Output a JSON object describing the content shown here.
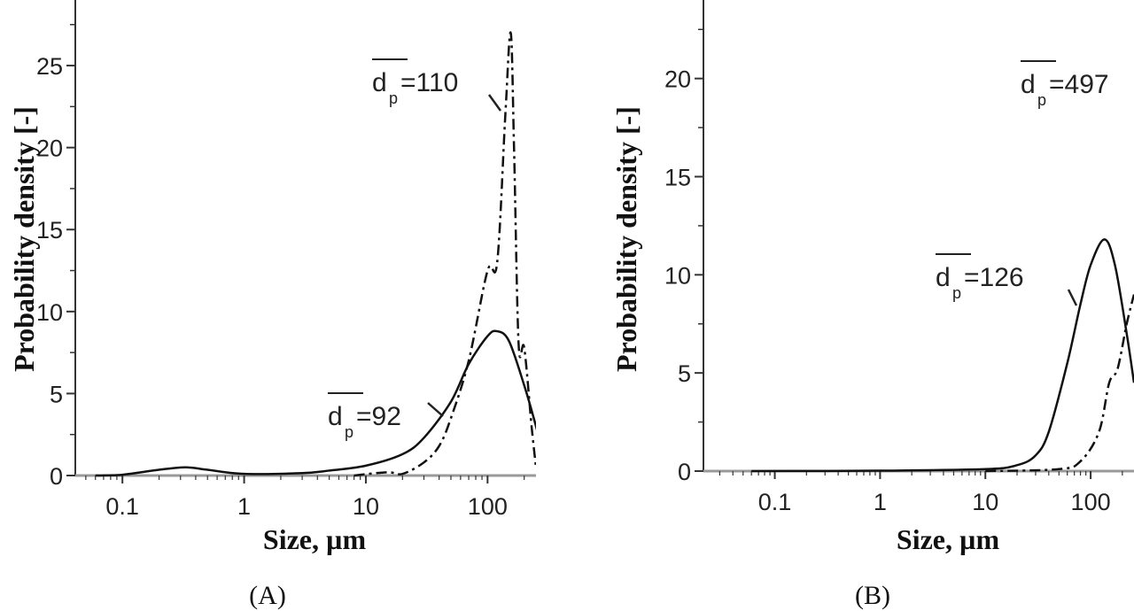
{
  "chart_data": [
    {
      "type": "line",
      "caption": "(A)",
      "xlabel": "Size, µm",
      "ylabel": "Probability density [-]",
      "xscale": "log",
      "xlim": [
        0.041,
        250
      ],
      "ylim": [
        0,
        29
      ],
      "xticks": [
        0.1,
        1,
        10,
        100
      ],
      "xtick_labels": [
        "0.1",
        "1",
        "10",
        "100"
      ],
      "yticks": [
        0,
        5,
        10,
        15,
        20,
        25
      ],
      "ytick_labels": [
        "0",
        "5",
        "10",
        "15",
        "20",
        "25"
      ],
      "grid": false,
      "series": [
        {
          "style": "solid",
          "x": [
            0.06,
            0.1,
            0.2,
            0.33,
            0.5,
            1,
            3,
            5,
            10,
            20,
            30,
            50,
            70,
            100,
            120,
            150,
            200,
            250,
            280
          ],
          "y": [
            0,
            0.05,
            0.35,
            0.5,
            0.35,
            0.1,
            0.15,
            0.3,
            0.6,
            1.3,
            2.3,
            4.5,
            6.8,
            8.5,
            8.8,
            8.2,
            5.5,
            3,
            1.5
          ]
        },
        {
          "style": "dash-dot",
          "x": [
            8,
            15,
            20,
            30,
            40,
            50,
            70,
            100,
            120,
            140,
            155,
            165,
            180,
            200,
            230,
            250
          ],
          "y": [
            0,
            0.2,
            0.1,
            0.8,
            1.8,
            3.5,
            7,
            12.5,
            13,
            22,
            27,
            20,
            8,
            7.8,
            3,
            0.5
          ]
        }
      ],
      "annotations": [
        {
          "symbol": "d",
          "subscript": "p",
          "value": "=92",
          "series": "solid"
        },
        {
          "symbol": "d",
          "subscript": "p",
          "value": "=110",
          "series": "dash-dot"
        }
      ]
    },
    {
      "type": "line",
      "caption": "(B)",
      "xlabel": "Size, µm",
      "ylabel": "Probability density [-]",
      "xscale": "log",
      "xlim": [
        0.021,
        258
      ],
      "ylim": [
        0,
        24
      ],
      "xticks": [
        0.1,
        1,
        10,
        100
      ],
      "xtick_labels": [
        "0.1",
        "1",
        "10",
        "100"
      ],
      "yticks": [
        0,
        5,
        10,
        15,
        20
      ],
      "ytick_labels": [
        "0",
        "5",
        "10",
        "15",
        "20"
      ],
      "grid": false,
      "series": [
        {
          "style": "solid",
          "x": [
            0.06,
            1,
            10,
            20,
            30,
            40,
            60,
            80,
            100,
            135,
            170,
            220,
            258
          ],
          "y": [
            0,
            0.02,
            0.1,
            0.3,
            0.8,
            2,
            5.5,
            8.5,
            10.5,
            11.8,
            10.5,
            7,
            4.5
          ]
        },
        {
          "style": "dash-dot",
          "x": [
            10,
            50,
            80,
            120,
            150,
            180,
            220,
            258
          ],
          "y": [
            0,
            0.1,
            0.5,
            2,
            4.5,
            5.2,
            7.5,
            9
          ]
        }
      ],
      "annotations": [
        {
          "symbol": "d",
          "subscript": "p",
          "value": "=126",
          "series": "solid"
        },
        {
          "symbol": "d",
          "subscript": "p",
          "value": "=497",
          "series": "dash-dot"
        }
      ]
    }
  ]
}
